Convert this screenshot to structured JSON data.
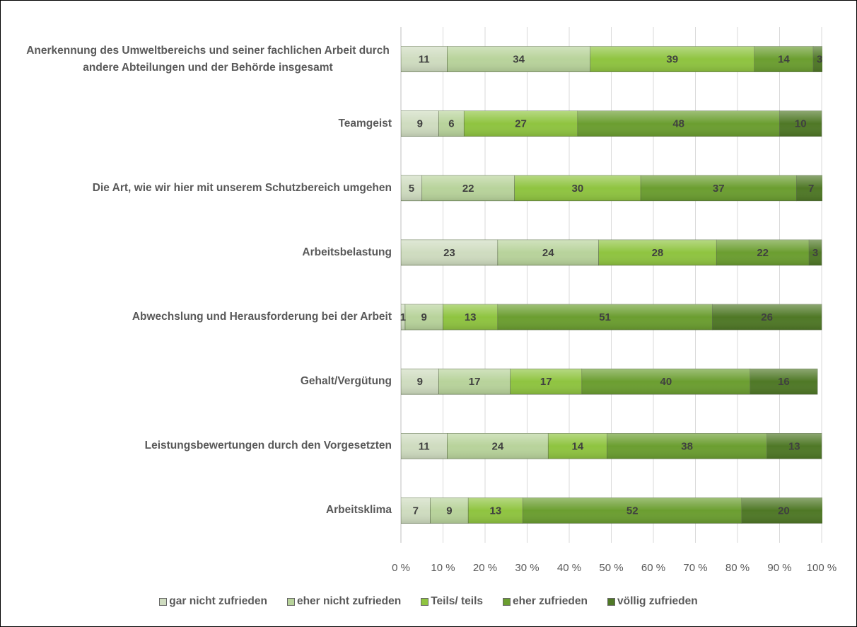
{
  "chart_data": {
    "type": "stacked_bar_horizontal",
    "categories": [
      "Anerkennung des Umweltbereichs und seiner fachlichen Arbeit durch andere Abteilungen und der Behörde insgesamt",
      "Teamgeist",
      "Die Art, wie wir hier mit unserem Schutzbereich umgehen",
      "Arbeitsbelastung",
      "Abwechslung und Herausforderung bei der Arbeit",
      "Gehalt/Vergütung",
      "Leistungsbewertungen durch den Vorgesetzten",
      "Arbeitsklima"
    ],
    "series": [
      {
        "name": "gar nicht zufrieden",
        "color": "#cfdcc0",
        "values": [
          11,
          9,
          5,
          23,
          1,
          9,
          11,
          7
        ]
      },
      {
        "name": "eher nicht zufrieden",
        "color": "#b8d39b",
        "values": [
          34,
          6,
          22,
          24,
          9,
          17,
          24,
          9
        ]
      },
      {
        "name": "Teils/ teils",
        "color": "#8fc440",
        "values": [
          39,
          27,
          30,
          28,
          13,
          17,
          14,
          13
        ]
      },
      {
        "name": "eher zufrieden",
        "color": "#6b9e30",
        "values": [
          14,
          48,
          37,
          22,
          51,
          40,
          38,
          52
        ]
      },
      {
        "name": "völlig zufrieden",
        "color": "#4f7826",
        "values": [
          3,
          10,
          7,
          3,
          26,
          16,
          13,
          20
        ]
      }
    ],
    "xlim": [
      0,
      100
    ],
    "xticks": [
      {
        "value": 0,
        "label": "0 %"
      },
      {
        "value": 10,
        "label": "10 %"
      },
      {
        "value": 20,
        "label": "20 %"
      },
      {
        "value": 30,
        "label": "30 %"
      },
      {
        "value": 40,
        "label": "40 %"
      },
      {
        "value": 50,
        "label": "50 %"
      },
      {
        "value": 60,
        "label": "60 %"
      },
      {
        "value": 70,
        "label": "70 %"
      },
      {
        "value": 80,
        "label": "80 %"
      },
      {
        "value": 90,
        "label": "90 %"
      },
      {
        "value": 100,
        "label": "100 %"
      }
    ],
    "grid": true,
    "legend": "bottom"
  }
}
